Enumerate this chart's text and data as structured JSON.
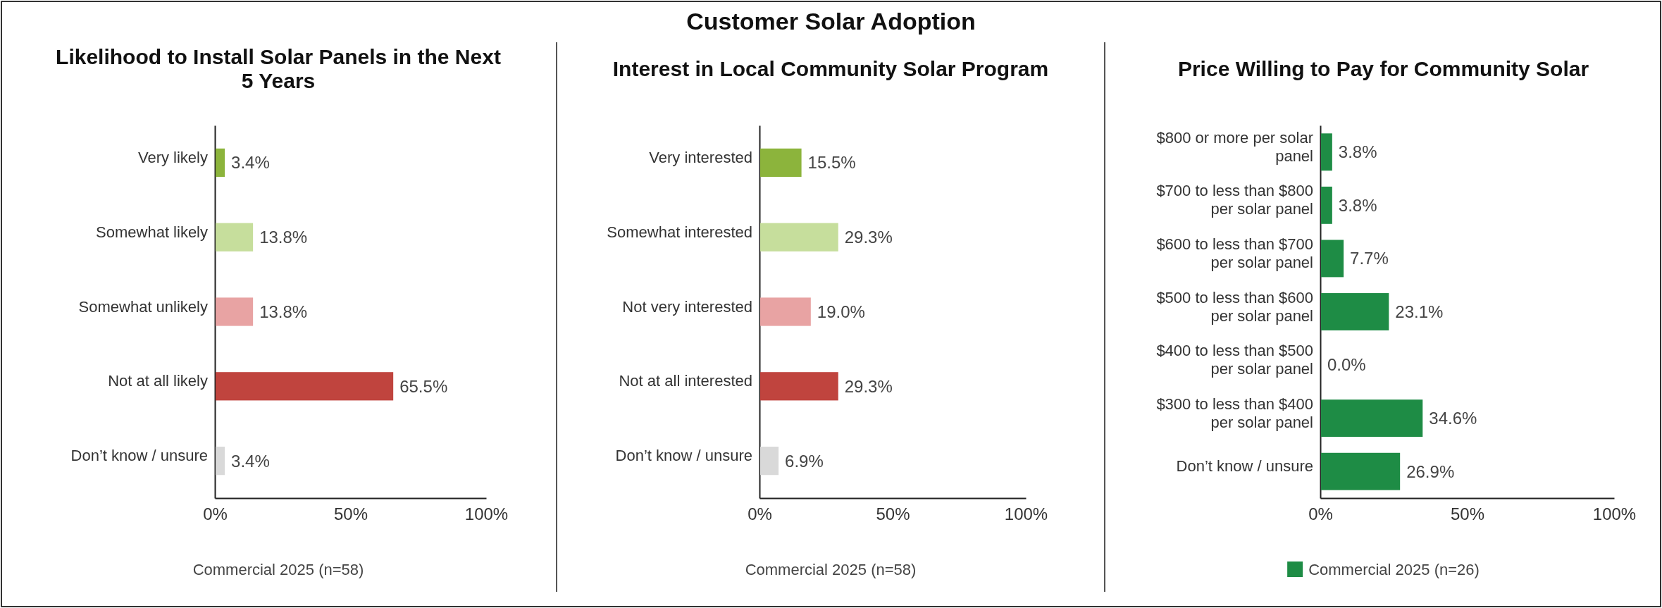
{
  "chart_data": [
    {
      "type": "bar",
      "orientation": "horizontal",
      "title": "Likelihood to Install Solar Panels in the Next 5 Years",
      "annotations": [
        "Customer Solar Adoption",
        "Commercial 2025 (n=58)"
      ],
      "categories": [
        "Very likely",
        "Somewhat likely",
        "Somewhat unlikely",
        "Not at all likely",
        "Don’t know / unsure"
      ],
      "values": [
        3.4,
        13.8,
        13.8,
        65.5,
        3.4
      ],
      "colors": [
        "#8cb43c",
        "#c6de9c",
        "#e8a3a3",
        "#c0443e",
        "#d9d9d9"
      ],
      "value_labels": [
        "3.4%",
        "13.8%",
        "13.8%",
        "65.5%",
        "3.4%"
      ],
      "xlim": [
        0,
        100
      ],
      "xticks": [
        {
          "value": 0,
          "label": "0%"
        },
        {
          "value": 50,
          "label": "50%"
        },
        {
          "value": 100,
          "label": "100%"
        }
      ]
    },
    {
      "type": "bar",
      "orientation": "horizontal",
      "title": "Interest in Local Community Solar Program",
      "annotations": [
        "Commercial 2025 (n=58)"
      ],
      "categories": [
        "Very interested",
        "Somewhat interested",
        "Not very interested",
        "Not at all interested",
        "Don’t know / unsure"
      ],
      "values": [
        15.5,
        29.3,
        19.0,
        29.3,
        6.9
      ],
      "colors": [
        "#8cb43c",
        "#c6de9c",
        "#e8a3a3",
        "#c0443e",
        "#d9d9d9"
      ],
      "value_labels": [
        "15.5%",
        "29.3%",
        "19.0%",
        "29.3%",
        "6.9%"
      ],
      "xlim": [
        0,
        100
      ],
      "xticks": [
        {
          "value": 0,
          "label": "0%"
        },
        {
          "value": 50,
          "label": "50%"
        },
        {
          "value": 100,
          "label": "100%"
        }
      ]
    },
    {
      "type": "bar",
      "orientation": "horizontal",
      "title": "Price Willing to Pay for Community Solar",
      "legend": "bottom",
      "categories": [
        "$800 or more per solar panel",
        "$700 to less than $800 per solar panel",
        "$600 to less than $700 per solar panel",
        "$500 to less than $600 per solar panel",
        "$400 to less than $500 per solar panel",
        "$300 to less than $400 per solar panel",
        "Don’t know / unsure"
      ],
      "series": [
        {
          "name": "Commercial 2025 (n=26)",
          "color": "#1e8c45",
          "values": [
            3.8,
            3.8,
            7.7,
            23.1,
            0.0,
            34.6,
            26.9
          ],
          "value_labels": [
            "3.8%",
            "3.8%",
            "7.7%",
            "23.1%",
            "0.0%",
            "34.6%",
            "26.9%"
          ]
        }
      ],
      "xlim": [
        0,
        100
      ],
      "xticks": [
        {
          "value": 0,
          "label": "0%"
        },
        {
          "value": 50,
          "label": "50%"
        },
        {
          "value": 100,
          "label": "100%"
        }
      ]
    }
  ]
}
